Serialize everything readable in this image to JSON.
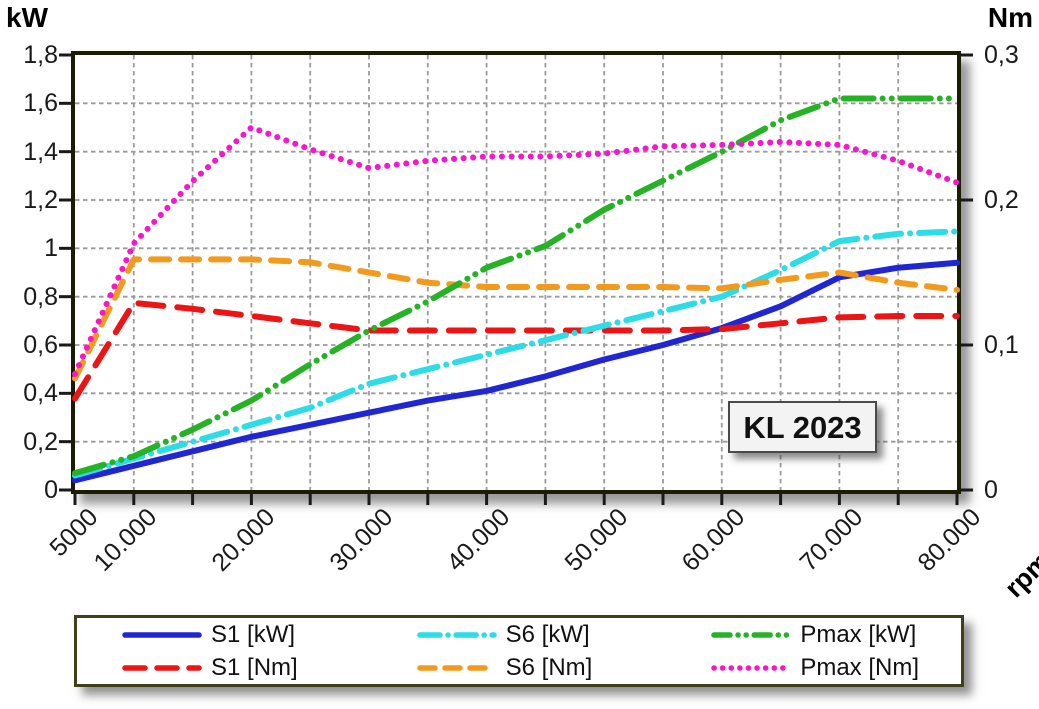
{
  "annotation": {
    "label": "KL 2023"
  },
  "axes": {
    "left": {
      "title": "kW",
      "ticks": [
        {
          "text": "0",
          "value": 0
        },
        {
          "text": "0,2",
          "value": 0.2
        },
        {
          "text": "0,4",
          "value": 0.4
        },
        {
          "text": "0,6",
          "value": 0.6
        },
        {
          "text": "0,8",
          "value": 0.8
        },
        {
          "text": "1",
          "value": 1.0
        },
        {
          "text": "1,2",
          "value": 1.2
        },
        {
          "text": "1,4",
          "value": 1.4
        },
        {
          "text": "1,6",
          "value": 1.6
        },
        {
          "text": "1,8",
          "value": 1.8
        }
      ]
    },
    "right": {
      "title": "Nm",
      "ticks": [
        {
          "text": "0",
          "value": 0
        },
        {
          "text": "0,1",
          "value": 0.1
        },
        {
          "text": "0,2",
          "value": 0.2
        },
        {
          "text": "0,3",
          "value": 0.3
        }
      ]
    },
    "x": {
      "title": "rpm",
      "labels": [
        {
          "text": "5000",
          "value": 5000
        },
        {
          "text": "10.000",
          "value": 10000
        },
        {
          "text": "20.000",
          "value": 20000
        },
        {
          "text": "30.000",
          "value": 30000
        },
        {
          "text": "40.000",
          "value": 40000
        },
        {
          "text": "50.000",
          "value": 50000
        },
        {
          "text": "60.000",
          "value": 60000
        },
        {
          "text": "70.000",
          "value": 70000
        },
        {
          "text": "80.000",
          "value": 80000
        }
      ]
    }
  },
  "chart_data": {
    "type": "line",
    "title": "",
    "xlabel": "rpm",
    "ylabel_left": "kW",
    "ylabel_right": "Nm",
    "xlim": [
      5000,
      80000
    ],
    "ylim_left": [
      0,
      1.8
    ],
    "ylim_right": [
      0,
      0.3
    ],
    "x_tick_step": 5000,
    "grid": true,
    "grid_color": "#9b9b9b",
    "legend_position": "bottom",
    "x_rpm": [
      5000,
      10000,
      15000,
      20000,
      25000,
      30000,
      35000,
      40000,
      45000,
      50000,
      55000,
      60000,
      65000,
      70000,
      75000,
      80000
    ],
    "series": [
      {
        "name": "S1 [kW]",
        "axis": "kW",
        "color": "#2026d2",
        "style": "solid",
        "values": [
          0.04,
          0.1,
          0.16,
          0.22,
          0.27,
          0.32,
          0.37,
          0.41,
          0.47,
          0.54,
          0.6,
          0.67,
          0.76,
          0.88,
          0.92,
          0.94
        ]
      },
      {
        "name": "S1 [Nm]",
        "axis": "Nm",
        "color": "#ec1414",
        "style": "longdash",
        "values": [
          0.063,
          0.129,
          0.125,
          0.12,
          0.115,
          0.11,
          0.11,
          0.11,
          0.11,
          0.11,
          0.11,
          0.111,
          0.115,
          0.119,
          0.12,
          0.12
        ]
      },
      {
        "name": "S6 [kW]",
        "axis": "kW",
        "color": "#2cdce6",
        "style": "dashdot",
        "values": [
          0.06,
          0.13,
          0.2,
          0.27,
          0.34,
          0.44,
          0.5,
          0.56,
          0.62,
          0.68,
          0.74,
          0.8,
          0.91,
          1.03,
          1.06,
          1.07
        ]
      },
      {
        "name": "S6 [Nm]",
        "axis": "Nm",
        "color": "#f29a1d",
        "style": "dash",
        "values": [
          0.077,
          0.159,
          0.159,
          0.159,
          0.157,
          0.15,
          0.143,
          0.14,
          0.14,
          0.14,
          0.14,
          0.139,
          0.145,
          0.15,
          0.143,
          0.138
        ]
      },
      {
        "name": "Pmax [kW]",
        "axis": "kW",
        "color": "#25b325",
        "style": "dashdotdot",
        "values": [
          0.07,
          0.14,
          0.25,
          0.37,
          0.52,
          0.66,
          0.78,
          0.92,
          1.01,
          1.16,
          1.28,
          1.4,
          1.53,
          1.62,
          1.62,
          1.62
        ]
      },
      {
        "name": "Pmax [Nm]",
        "axis": "Nm",
        "color": "#f816cb",
        "style": "dot",
        "values": [
          0.08,
          0.17,
          0.213,
          0.25,
          0.235,
          0.222,
          0.227,
          0.23,
          0.23,
          0.232,
          0.237,
          0.238,
          0.24,
          0.238,
          0.227,
          0.212
        ]
      }
    ]
  }
}
